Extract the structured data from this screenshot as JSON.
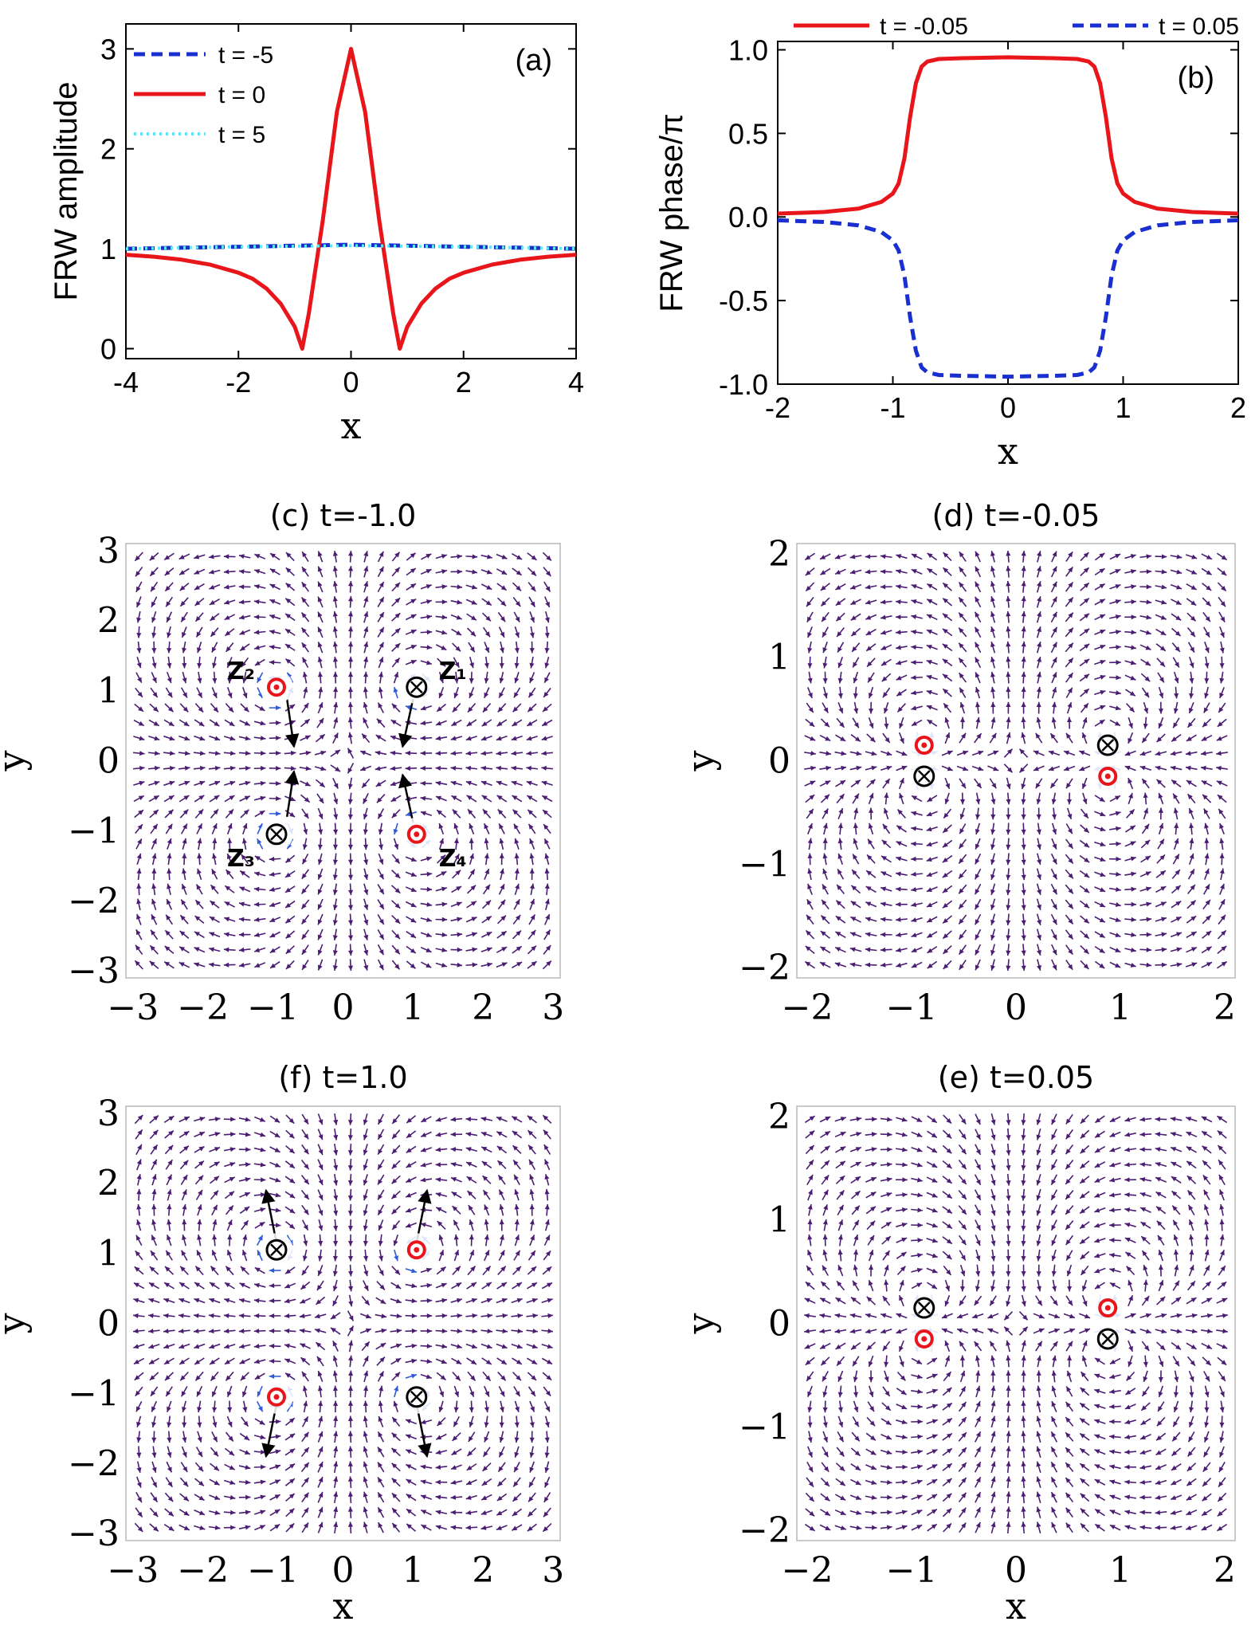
{
  "colors": {
    "red": "#e8161b",
    "blue": "#1a2fcf",
    "cyan": "#5fe7f2",
    "purple": "#4b1d72",
    "blue_arrow": "#2f5bd8",
    "black": "#000000"
  },
  "chart_data": [
    {
      "id": "a",
      "type": "line",
      "panel_label": "(a)",
      "xlabel": "x",
      "ylabel": "FRW amplitude",
      "xlim": [
        -4,
        4
      ],
      "ylim": [
        -0.1,
        3.25
      ],
      "xticks": [
        -4,
        -2,
        0,
        2,
        4
      ],
      "yticks": [
        0,
        1,
        2,
        3
      ],
      "xtick_labels": [
        "-4",
        "-2",
        "0",
        "2",
        "4"
      ],
      "ytick_labels": [
        "0",
        "1",
        "2",
        "3"
      ],
      "legend": [
        "t = -5",
        "t = 0",
        "t = 5"
      ],
      "legend_position": "top-left",
      "series": [
        {
          "name": "t = -5",
          "style": "dashed",
          "color": "blue",
          "x": [
            -4,
            -3,
            -2,
            -1,
            -0.5,
            0,
            0.5,
            1,
            2,
            3,
            4
          ],
          "y": [
            1.0,
            1.01,
            1.02,
            1.03,
            1.035,
            1.04,
            1.035,
            1.03,
            1.02,
            1.01,
            1.0
          ]
        },
        {
          "name": "t = 0",
          "style": "solid",
          "color": "red",
          "x": [
            -4,
            -3.5,
            -3,
            -2.5,
            -2,
            -1.75,
            -1.5,
            -1.25,
            -1.0,
            -0.866,
            -0.75,
            -0.5,
            -0.25,
            0,
            0.25,
            0.5,
            0.75,
            0.866,
            1.0,
            1.25,
            1.5,
            1.75,
            2,
            2.5,
            3,
            3.5,
            4
          ],
          "y": [
            0.94,
            0.92,
            0.89,
            0.84,
            0.76,
            0.7,
            0.6,
            0.45,
            0.22,
            0.0,
            0.35,
            1.29,
            2.37,
            3.0,
            2.37,
            1.29,
            0.35,
            0.0,
            0.22,
            0.45,
            0.6,
            0.7,
            0.76,
            0.84,
            0.89,
            0.92,
            0.94
          ]
        },
        {
          "name": "t = 5",
          "style": "dotted",
          "color": "cyan",
          "x": [
            -4,
            -2,
            0,
            2,
            4
          ],
          "y": [
            1.0,
            1.02,
            1.03,
            1.02,
            1.0
          ]
        }
      ]
    },
    {
      "id": "b",
      "type": "line",
      "panel_label": "(b)",
      "xlabel": "x",
      "ylabel": "FRW phase/π",
      "xlim": [
        -2,
        2
      ],
      "ylim": [
        -1.0,
        1.05
      ],
      "xticks": [
        -2,
        -1,
        0,
        1,
        2
      ],
      "yticks": [
        1.0,
        0.5,
        0.0,
        -0.5,
        -1.0
      ],
      "xtick_labels": [
        "-2",
        "-1",
        "0",
        "1",
        "2"
      ],
      "ytick_labels": [
        "1.0",
        "0.5",
        "0.0",
        "-0.5",
        "-1.0"
      ],
      "legend": [
        "t = -0.05",
        "t = 0.05"
      ],
      "legend_position": "top-outside",
      "series": [
        {
          "name": "t = -0.05",
          "style": "solid",
          "color": "red",
          "x": [
            -2,
            -1.6,
            -1.3,
            -1.1,
            -1.0,
            -0.95,
            -0.9,
            -0.85,
            -0.8,
            -0.75,
            -0.7,
            -0.6,
            -0.4,
            0,
            0.4,
            0.6,
            0.7,
            0.75,
            0.8,
            0.85,
            0.9,
            0.95,
            1.0,
            1.1,
            1.3,
            1.6,
            2
          ],
          "y": [
            0.02,
            0.03,
            0.05,
            0.09,
            0.14,
            0.2,
            0.35,
            0.6,
            0.8,
            0.9,
            0.93,
            0.945,
            0.95,
            0.955,
            0.95,
            0.945,
            0.93,
            0.9,
            0.8,
            0.6,
            0.35,
            0.2,
            0.14,
            0.09,
            0.05,
            0.03,
            0.02
          ]
        },
        {
          "name": "t = 0.05",
          "style": "dashed",
          "color": "blue",
          "x": [
            -2,
            -1.6,
            -1.3,
            -1.1,
            -1.0,
            -0.95,
            -0.9,
            -0.85,
            -0.8,
            -0.75,
            -0.7,
            -0.6,
            -0.4,
            0,
            0.4,
            0.6,
            0.7,
            0.75,
            0.8,
            0.85,
            0.9,
            0.95,
            1.0,
            1.1,
            1.3,
            1.6,
            2
          ],
          "y": [
            -0.02,
            -0.03,
            -0.05,
            -0.09,
            -0.14,
            -0.2,
            -0.35,
            -0.6,
            -0.8,
            -0.9,
            -0.93,
            -0.945,
            -0.95,
            -0.955,
            -0.95,
            -0.945,
            -0.93,
            -0.9,
            -0.8,
            -0.6,
            -0.35,
            -0.2,
            -0.14,
            -0.09,
            -0.05,
            -0.03,
            -0.02
          ]
        }
      ]
    },
    {
      "id": "c",
      "type": "vector_field",
      "title": "(c) t=-1.0",
      "xlabel": "",
      "ylabel": "y",
      "range": 3.1,
      "ticks": [
        -3,
        -2,
        -1,
        0,
        1,
        2,
        3
      ],
      "tick_labels": [
        "−3",
        "−2",
        "−1",
        "0",
        "1",
        "2",
        "3"
      ],
      "singularities": [
        {
          "x": 1.05,
          "y": 1.05,
          "kind": "cross",
          "label": "Z₁"
        },
        {
          "x": -0.95,
          "y": 1.05,
          "kind": "dot",
          "label": "Z₂"
        },
        {
          "x": -0.95,
          "y": -1.05,
          "kind": "cross",
          "label": "Z₃"
        },
        {
          "x": 1.05,
          "y": -1.05,
          "kind": "dot",
          "label": "Z₄"
        }
      ],
      "motion_arrows": [
        {
          "from": [
            1.0,
            0.88
          ],
          "to": [
            0.85,
            0.2
          ]
        },
        {
          "from": [
            -0.8,
            0.88
          ],
          "to": [
            -0.7,
            0.2
          ]
        },
        {
          "from": [
            -0.8,
            -0.8
          ],
          "to": [
            -0.7,
            -0.15
          ]
        },
        {
          "from": [
            1.0,
            -0.88
          ],
          "to": [
            0.85,
            -0.2
          ]
        }
      ]
    },
    {
      "id": "d",
      "type": "vector_field",
      "title": "(d) t=-0.05",
      "xlabel": "",
      "ylabel": "y",
      "range": 2.1,
      "ticks": [
        -2,
        -1,
        0,
        1,
        2
      ],
      "tick_labels": [
        "−2",
        "−1",
        "0",
        "1",
        "2"
      ],
      "singularities": [
        {
          "x": -0.88,
          "y": 0.15,
          "kind": "dot",
          "label": ""
        },
        {
          "x": -0.88,
          "y": -0.15,
          "kind": "cross",
          "label": ""
        },
        {
          "x": 0.88,
          "y": 0.15,
          "kind": "cross",
          "label": ""
        },
        {
          "x": 0.88,
          "y": -0.15,
          "kind": "dot",
          "label": ""
        }
      ],
      "motion_arrows": []
    },
    {
      "id": "f",
      "type": "vector_field",
      "title": "(f) t=1.0",
      "xlabel": "x",
      "ylabel": "y",
      "range": 3.1,
      "ticks": [
        -3,
        -2,
        -1,
        0,
        1,
        2,
        3
      ],
      "tick_labels": [
        "−3",
        "−2",
        "−1",
        "0",
        "1",
        "2",
        "3"
      ],
      "singularities": [
        {
          "x": -0.95,
          "y": 1.05,
          "kind": "cross",
          "label": ""
        },
        {
          "x": 1.05,
          "y": 1.05,
          "kind": "dot",
          "label": ""
        },
        {
          "x": -0.95,
          "y": -1.05,
          "kind": "dot",
          "label": ""
        },
        {
          "x": 1.05,
          "y": -1.05,
          "kind": "cross",
          "label": ""
        }
      ],
      "motion_arrows": [
        {
          "from": [
            -0.95,
            1.15
          ],
          "to": [
            -1.1,
            1.9
          ]
        },
        {
          "from": [
            1.05,
            1.15
          ],
          "to": [
            1.2,
            1.9
          ]
        },
        {
          "from": [
            -0.95,
            -1.15
          ],
          "to": [
            -1.1,
            -1.9
          ]
        },
        {
          "from": [
            1.05,
            -1.15
          ],
          "to": [
            1.2,
            -1.9
          ]
        }
      ]
    },
    {
      "id": "e",
      "type": "vector_field",
      "title": "(e) t=0.05",
      "xlabel": "x",
      "ylabel": "y",
      "range": 2.1,
      "ticks": [
        -2,
        -1,
        0,
        1,
        2
      ],
      "tick_labels": [
        "−2",
        "−1",
        "0",
        "1",
        "2"
      ],
      "singularities": [
        {
          "x": -0.88,
          "y": 0.15,
          "kind": "cross",
          "label": ""
        },
        {
          "x": -0.88,
          "y": -0.15,
          "kind": "dot",
          "label": ""
        },
        {
          "x": 0.88,
          "y": 0.15,
          "kind": "dot",
          "label": ""
        },
        {
          "x": 0.88,
          "y": -0.15,
          "kind": "cross",
          "label": ""
        }
      ],
      "motion_arrows": []
    }
  ]
}
